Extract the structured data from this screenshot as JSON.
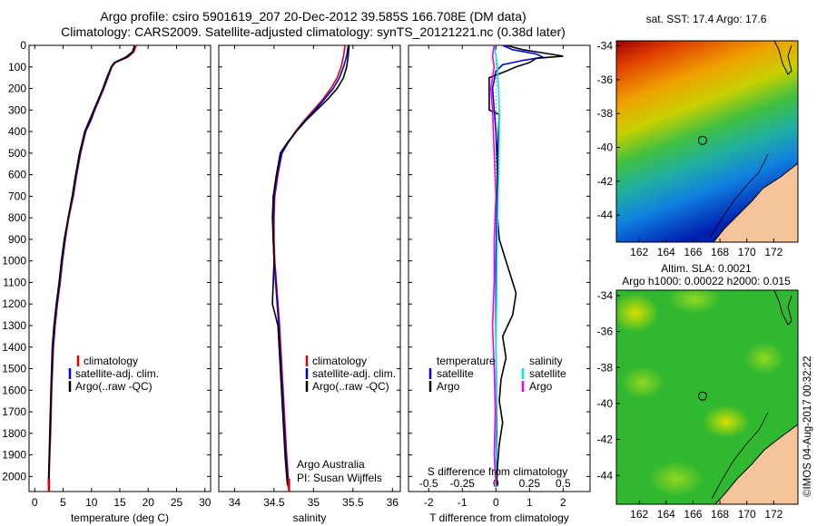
{
  "header": {
    "line1": "Argo profile: csiro 5901619_207 20-Dec-2012 39.585S 166.708E (DM data)",
    "line2": "Climatology: CARS2009. Satellite-adjusted climatology: synTS_20121221.nc (0.38d later)"
  },
  "colors": {
    "climatology": "#e00000",
    "satellite": "#0000ee",
    "argo": "#000000",
    "sal_satellite": "#00e5ee",
    "sal_argo": "#ee00ee",
    "land": "#f5c49a"
  },
  "credit": "©IMOS 04-Aug-2017 00:32:22",
  "chart_data": [
    {
      "type": "line",
      "panel": "temperature",
      "xlabel": "temperature (deg C)",
      "ylabel": "",
      "xlim": [
        -1,
        31
      ],
      "ylim": [
        2070,
        0
      ],
      "xticks": [
        0,
        5,
        10,
        15,
        20,
        25,
        30
      ],
      "yticks": [
        0,
        100,
        200,
        300,
        400,
        500,
        600,
        700,
        800,
        900,
        1000,
        1100,
        1200,
        1300,
        1400,
        1500,
        1600,
        1700,
        1800,
        1900,
        2000
      ],
      "legend": [
        "climatology",
        "satellite-adj. clim.",
        "Argo(..raw -QC)"
      ],
      "series": [
        {
          "name": "climatology",
          "color": "#e00000",
          "x": [
            17.9,
            17.5,
            16.4,
            14.2,
            13.6,
            12.9,
            12.2,
            11.4,
            10.6,
            9.9,
            9.0,
            8.1,
            7.4,
            6.8,
            6.0,
            5.4,
            4.9,
            4.5,
            4.0,
            3.6,
            3.3,
            3.0,
            2.8,
            2.6,
            2.5
          ],
          "y": [
            0,
            30,
            55,
            80,
            100,
            150,
            200,
            250,
            300,
            350,
            400,
            500,
            600,
            700,
            800,
            900,
            1000,
            1100,
            1200,
            1300,
            1400,
            1600,
            1800,
            1950,
            2050
          ]
        },
        {
          "name": "satellite-adj. clim.",
          "color": "#0000ee",
          "x": [
            17.6,
            17.2,
            16.0,
            14.0,
            13.5,
            12.8,
            12.1,
            11.3,
            10.5,
            9.8,
            8.9,
            8.0,
            7.3,
            6.7,
            5.9,
            5.3,
            4.8,
            4.4,
            3.9,
            3.5,
            3.2,
            2.9,
            2.7,
            2.55,
            2.45
          ],
          "y": [
            0,
            30,
            55,
            80,
            100,
            150,
            200,
            250,
            300,
            350,
            400,
            500,
            600,
            700,
            800,
            900,
            1000,
            1100,
            1200,
            1300,
            1400,
            1600,
            1800,
            1950,
            2050
          ]
        },
        {
          "name": "Argo(..raw -QC)",
          "color": "#000000",
          "x": [
            17.6,
            17.3,
            16.2,
            14.1,
            13.5,
            12.7,
            12.0,
            11.2,
            10.4,
            9.6,
            8.8,
            7.9,
            7.2,
            6.6,
            5.9,
            5.2,
            4.7,
            4.3,
            3.8,
            3.4,
            3.1,
            2.85,
            2.65,
            2.5,
            2.4
          ],
          "y": [
            0,
            30,
            55,
            80,
            100,
            150,
            200,
            250,
            300,
            350,
            400,
            500,
            600,
            700,
            800,
            900,
            1000,
            1100,
            1200,
            1300,
            1400,
            1600,
            1800,
            1950,
            2040
          ]
        }
      ]
    },
    {
      "type": "line",
      "panel": "salinity",
      "xlabel": "salinity",
      "xlim": [
        33.8,
        36.1
      ],
      "ylim": [
        2070,
        0
      ],
      "xticks": [
        34,
        34.5,
        35,
        35.5,
        36
      ],
      "legend": [
        "climatology",
        "satellite-adj. clim.",
        "Argo(..raw -QC)"
      ],
      "annotation": [
        "Argo Australia",
        "PI: Susan Wijffels"
      ],
      "series": [
        {
          "name": "climatology",
          "color": "#e00000",
          "x": [
            35.4,
            35.38,
            35.35,
            35.3,
            35.22,
            35.12,
            35.0,
            34.88,
            34.77,
            34.68,
            34.6,
            34.55,
            34.51,
            34.5,
            34.5,
            34.51,
            34.53,
            34.57,
            34.6,
            34.63,
            34.66,
            34.68,
            34.69
          ],
          "y": [
            0,
            50,
            100,
            150,
            200,
            250,
            300,
            350,
            400,
            450,
            500,
            600,
            700,
            800,
            900,
            1000,
            1100,
            1300,
            1500,
            1700,
            1900,
            2000,
            2050
          ]
        },
        {
          "name": "satellite-adj. clim.",
          "color": "#0000ee",
          "x": [
            35.44,
            35.42,
            35.38,
            35.33,
            35.25,
            35.14,
            35.02,
            34.89,
            34.78,
            34.68,
            34.6,
            34.54,
            34.5,
            34.49,
            34.49,
            34.5,
            34.52,
            34.56,
            34.59,
            34.62,
            34.65,
            34.67,
            34.68
          ],
          "y": [
            0,
            50,
            100,
            150,
            200,
            250,
            300,
            350,
            400,
            450,
            500,
            600,
            700,
            800,
            900,
            1000,
            1100,
            1300,
            1500,
            1700,
            1900,
            2000,
            2050
          ]
        },
        {
          "name": "Argo(..raw -QC)",
          "color": "#000000",
          "x": [
            35.45,
            35.44,
            35.42,
            35.38,
            35.3,
            35.18,
            35.04,
            34.9,
            34.78,
            34.67,
            34.58,
            34.53,
            34.49,
            34.48,
            34.49,
            34.5,
            34.48,
            34.55,
            34.58,
            34.61,
            34.64,
            34.66,
            34.67
          ],
          "y": [
            0,
            50,
            100,
            150,
            200,
            250,
            300,
            350,
            400,
            450,
            500,
            600,
            700,
            800,
            900,
            1000,
            1200,
            1300,
            1500,
            1700,
            1900,
            2000,
            2040
          ]
        }
      ]
    },
    {
      "type": "line",
      "panel": "difference",
      "xlabel": "T difference from climatology",
      "xlabel_top": "S difference from climatology",
      "xlim": [
        -2.6,
        2.8
      ],
      "ylim": [
        2070,
        0
      ],
      "xticks": [
        -2,
        -1,
        0,
        1,
        2
      ],
      "sticks": {
        "labels": [
          "-0.5",
          "-0.25",
          "0",
          "0.25",
          "0.5"
        ]
      },
      "legend_temperature": {
        "title": "temperature",
        "items": [
          "satellite",
          "Argo"
        ]
      },
      "legend_salinity": {
        "title": "salinity",
        "items": [
          "satellite",
          "Argo"
        ]
      },
      "series": [
        {
          "name": "temperature satellite",
          "color": "#0000ee",
          "x": [
            0.2,
            0.5,
            1.2,
            1.4,
            0.8,
            0.2,
            0.0,
            -0.1,
            0.0,
            0.05,
            0.0,
            0.0,
            0.02,
            0.0
          ],
          "y": [
            0,
            20,
            40,
            55,
            70,
            90,
            120,
            200,
            400,
            600,
            1000,
            1400,
            1800,
            2050
          ]
        },
        {
          "name": "temperature Argo",
          "color": "#000000",
          "x": [
            0.3,
            0.8,
            1.6,
            2.0,
            1.2,
            1.0,
            0.6,
            0.3,
            -0.2,
            -0.2,
            0.1,
            0.05,
            0.05,
            0.1,
            0.3,
            0.6,
            0.5,
            0.2,
            0.3,
            0.15,
            0.1,
            0.2,
            0.1,
            0.05,
            0.02
          ],
          "y": [
            0,
            20,
            40,
            50,
            60,
            80,
            100,
            120,
            150,
            300,
            320,
            500,
            800,
            900,
            1000,
            1150,
            1250,
            1350,
            1450,
            1550,
            1650,
            1750,
            1850,
            1950,
            2040
          ]
        },
        {
          "name": "salinity satellite",
          "color": "#00e5ee",
          "x": [
            -0.05,
            0.0,
            0.05,
            0.05,
            0.08,
            0.1,
            0.1,
            0.08,
            0.05,
            0.03,
            0.02,
            0.0,
            0.0,
            0.0
          ],
          "y": [
            0,
            50,
            100,
            150,
            200,
            300,
            400,
            600,
            800,
            1000,
            1200,
            1400,
            1700,
            2050
          ]
        },
        {
          "name": "salinity Argo",
          "color": "#ee00ee",
          "x": [
            -0.05,
            -0.1,
            -0.05,
            -0.15,
            -0.1,
            -0.05,
            0.0,
            -0.05,
            -0.05,
            -0.1,
            -0.05,
            -0.02,
            -0.05,
            0.0
          ],
          "y": [
            0,
            50,
            100,
            200,
            300,
            500,
            700,
            900,
            1100,
            1300,
            1500,
            1700,
            1900,
            2040
          ]
        }
      ]
    }
  ],
  "maps": {
    "sst": {
      "title": "sat. SST: 17.4  Argo: 17.6",
      "xticks": [
        162,
        164,
        166,
        168,
        170,
        172
      ],
      "yticks": [
        -34,
        -36,
        -38,
        -40,
        -42,
        -44
      ],
      "lon_range": [
        160.3,
        173.8
      ],
      "lat_range": [
        -45.6,
        -33.7
      ],
      "argo_position": {
        "lon": 166.708,
        "lat": -39.585
      }
    },
    "sla": {
      "title1": "Altim. SLA: 0.0021",
      "title2": "Argo h1000: 0.00022  h2000: 0.015",
      "xticks": [
        162,
        164,
        166,
        168,
        170,
        172
      ],
      "yticks": [
        -34,
        -36,
        -38,
        -40,
        -42,
        -44
      ],
      "lon_range": [
        160.3,
        173.8
      ],
      "lat_range": [
        -45.6,
        -33.7
      ],
      "argo_position": {
        "lon": 166.708,
        "lat": -39.585
      }
    }
  }
}
